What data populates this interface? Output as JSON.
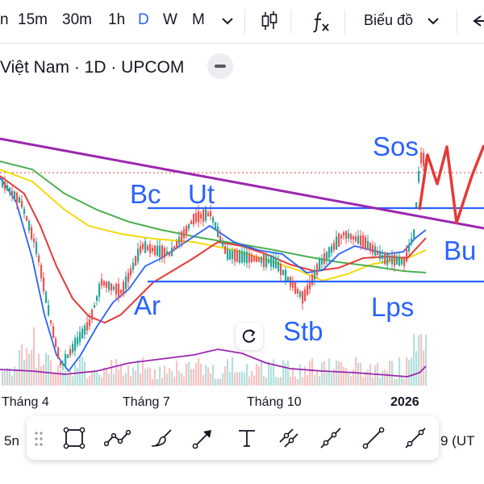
{
  "toolbar": {
    "timeframes": [
      "n",
      "15m",
      "30m",
      "1h",
      "D",
      "W",
      "M"
    ],
    "active_timeframe": "D",
    "chart_type_label": "Biểu đồ",
    "icons": [
      "chevron-down-icon",
      "candlestick-icon",
      "fx-indicator-icon",
      "chevron-down-icon",
      "undo-arrow-icon"
    ]
  },
  "symbol": {
    "title": "Việt Nam · 1D · UPCOM"
  },
  "annotations": {
    "bc": "Bc",
    "ut": "Ut",
    "sos": "Sos",
    "ar": "Ar",
    "stb": "Stb",
    "lps": "Lps",
    "bu": "Bu"
  },
  "x_axis": {
    "labels": [
      "Tháng 4",
      "Tháng 7",
      "Tháng 10",
      "2026"
    ]
  },
  "bottom": {
    "left_text": "5n",
    "right_text": "9 (UT"
  },
  "drawing_tools": [
    "drag-handle-icon",
    "rectangle-tool-icon",
    "polyline-tool-icon",
    "brush-tool-icon",
    "arrow-tool-icon",
    "text-tool-icon",
    "parallel-channel-tool-icon",
    "ray-tool-icon",
    "trend-line-tool-icon",
    "extended-line-tool-icon"
  ],
  "colors": {
    "active_blue": "#2962ff",
    "up_candle": "#26a69a",
    "down_candle": "#ef5350",
    "trendline_purple": "#9c27b0",
    "range_line_blue": "#2962ff",
    "projection_red": "#e53935",
    "ma_yellow": "#f5d90a",
    "ma_green": "#4caf50",
    "ma_blue": "#2962ff",
    "ma_red": "#e53935"
  }
}
